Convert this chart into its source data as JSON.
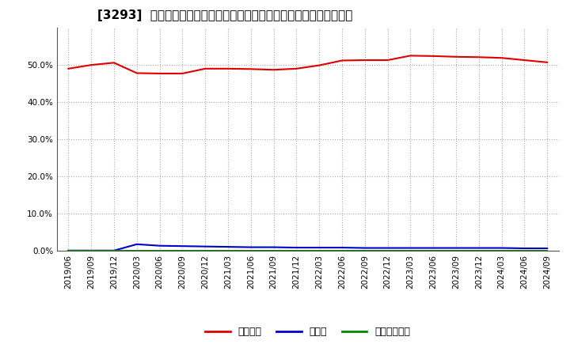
{
  "title": "[3293]  自己資本、のれん、繰延税金資産の総資産に対する比率の推移",
  "x_labels": [
    "2019/06",
    "2019/09",
    "2019/12",
    "2020/03",
    "2020/06",
    "2020/09",
    "2020/12",
    "2021/03",
    "2021/06",
    "2021/09",
    "2021/12",
    "2022/03",
    "2022/06",
    "2022/09",
    "2022/12",
    "2023/03",
    "2023/06",
    "2023/09",
    "2023/12",
    "2024/03",
    "2024/06",
    "2024/09"
  ],
  "equity_ratio": [
    0.49,
    0.5,
    0.506,
    0.478,
    0.477,
    0.477,
    0.49,
    0.49,
    0.489,
    0.487,
    0.49,
    0.499,
    0.512,
    0.513,
    0.513,
    0.525,
    0.524,
    0.522,
    0.521,
    0.519,
    0.513,
    0.507
  ],
  "goodwill_ratio": [
    0.0,
    0.0,
    0.0,
    0.017,
    0.013,
    0.012,
    0.011,
    0.01,
    0.009,
    0.009,
    0.008,
    0.008,
    0.008,
    0.007,
    0.007,
    0.007,
    0.007,
    0.007,
    0.007,
    0.007,
    0.006,
    0.006
  ],
  "deferred_tax_ratio": [
    0.0,
    0.0,
    0.0,
    0.0,
    0.0,
    0.0,
    0.0,
    0.0,
    0.0,
    0.0,
    0.0,
    0.0,
    0.0,
    0.0,
    0.0,
    0.0,
    0.0,
    0.0,
    0.0,
    0.0,
    0.0,
    0.0
  ],
  "equity_color": "#dd0000",
  "goodwill_color": "#0000cc",
  "deferred_tax_color": "#008800",
  "legend_equity": "自己資本",
  "legend_goodwill": "のれん",
  "legend_deferred_tax": "繰延税金資産",
  "ylim": [
    0.0,
    0.6
  ],
  "yticks": [
    0.0,
    0.1,
    0.2,
    0.3,
    0.4,
    0.5
  ],
  "background_color": "#ffffff",
  "plot_bg_color": "#ffffff",
  "grid_color": "#aaaaaa",
  "title_fontsize": 11,
  "legend_fontsize": 9,
  "tick_fontsize": 7.5
}
